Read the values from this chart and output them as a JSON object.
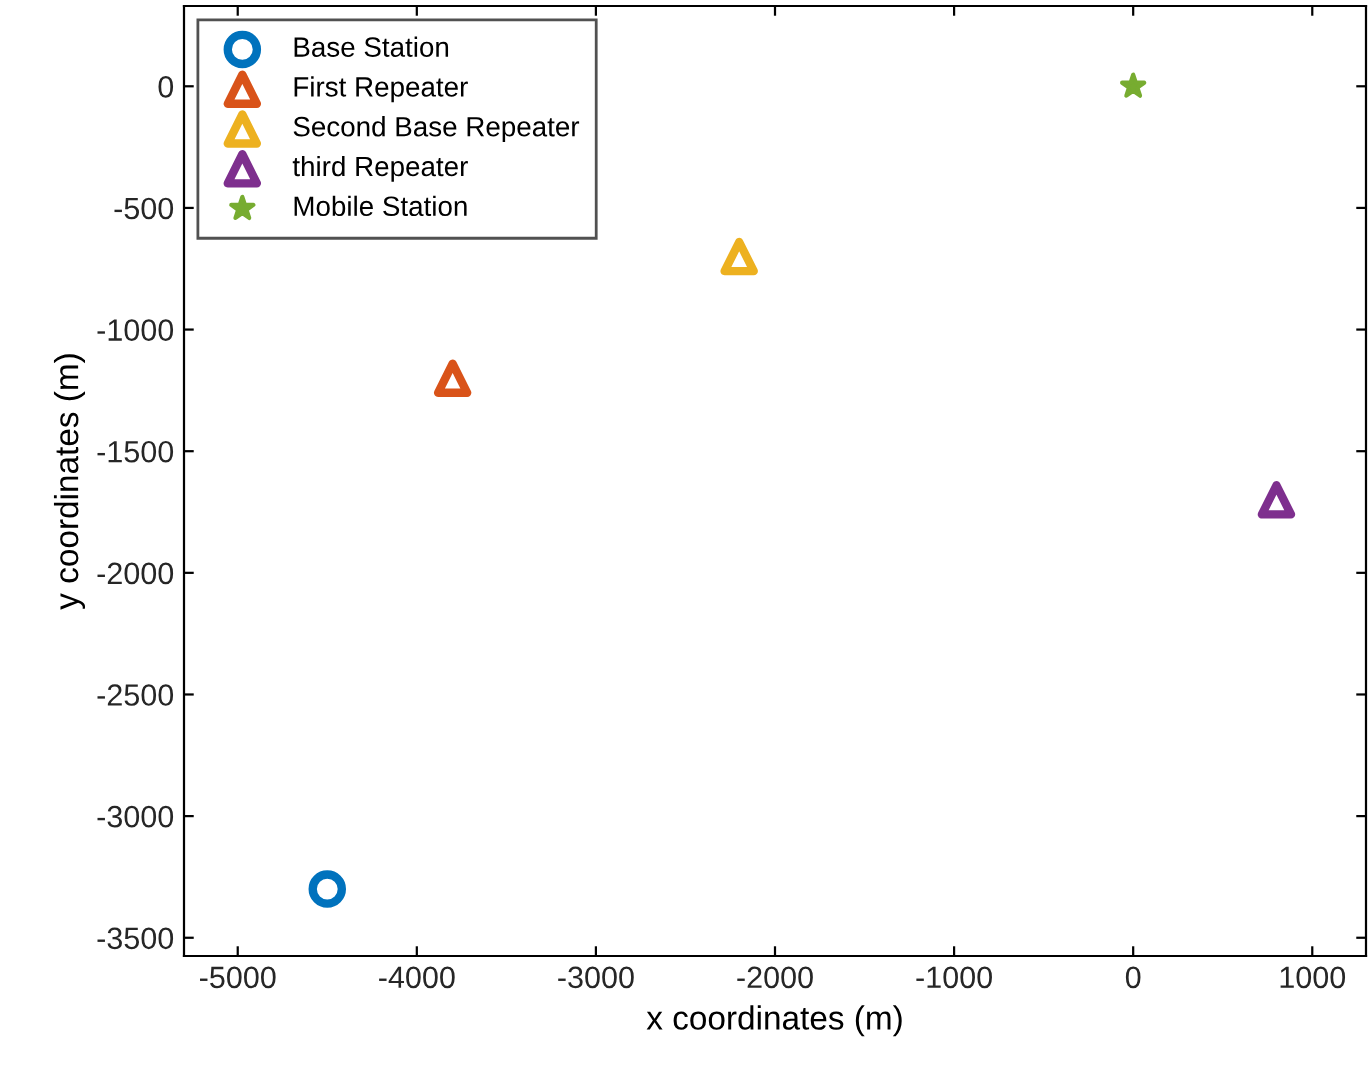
{
  "chart_data": {
    "type": "scatter",
    "xlabel": "x coordinates (m)",
    "ylabel": "y coordinates (m)",
    "xlim": [
      -5300,
      1300
    ],
    "ylim": [
      -3575,
      330
    ],
    "xticks": [
      -5000,
      -4000,
      -3000,
      -2000,
      -1000,
      0,
      1000
    ],
    "yticks": [
      -3500,
      -3000,
      -2500,
      -2000,
      -1500,
      -1000,
      -500,
      0
    ],
    "grid": false,
    "legend": "top left",
    "series": [
      {
        "name": "Base Station",
        "color": "#0072bd",
        "marker": "circle",
        "x": [
          -4500
        ],
        "values": [
          -3300
        ]
      },
      {
        "name": "First Repeater",
        "color": "#d95319",
        "marker": "triangle",
        "x": [
          -3800
        ],
        "values": [
          -1200
        ]
      },
      {
        "name": "Second Base Repeater",
        "color": "#edb120",
        "marker": "triangle",
        "x": [
          -2200
        ],
        "values": [
          -700
        ]
      },
      {
        "name": "third Repeater",
        "color": "#7e2f8e",
        "marker": "triangle",
        "x": [
          800
        ],
        "values": [
          -1700
        ]
      },
      {
        "name": "Mobile Station",
        "color": "#77ac30",
        "marker": "star",
        "x": [
          0
        ],
        "values": [
          0
        ]
      }
    ]
  }
}
